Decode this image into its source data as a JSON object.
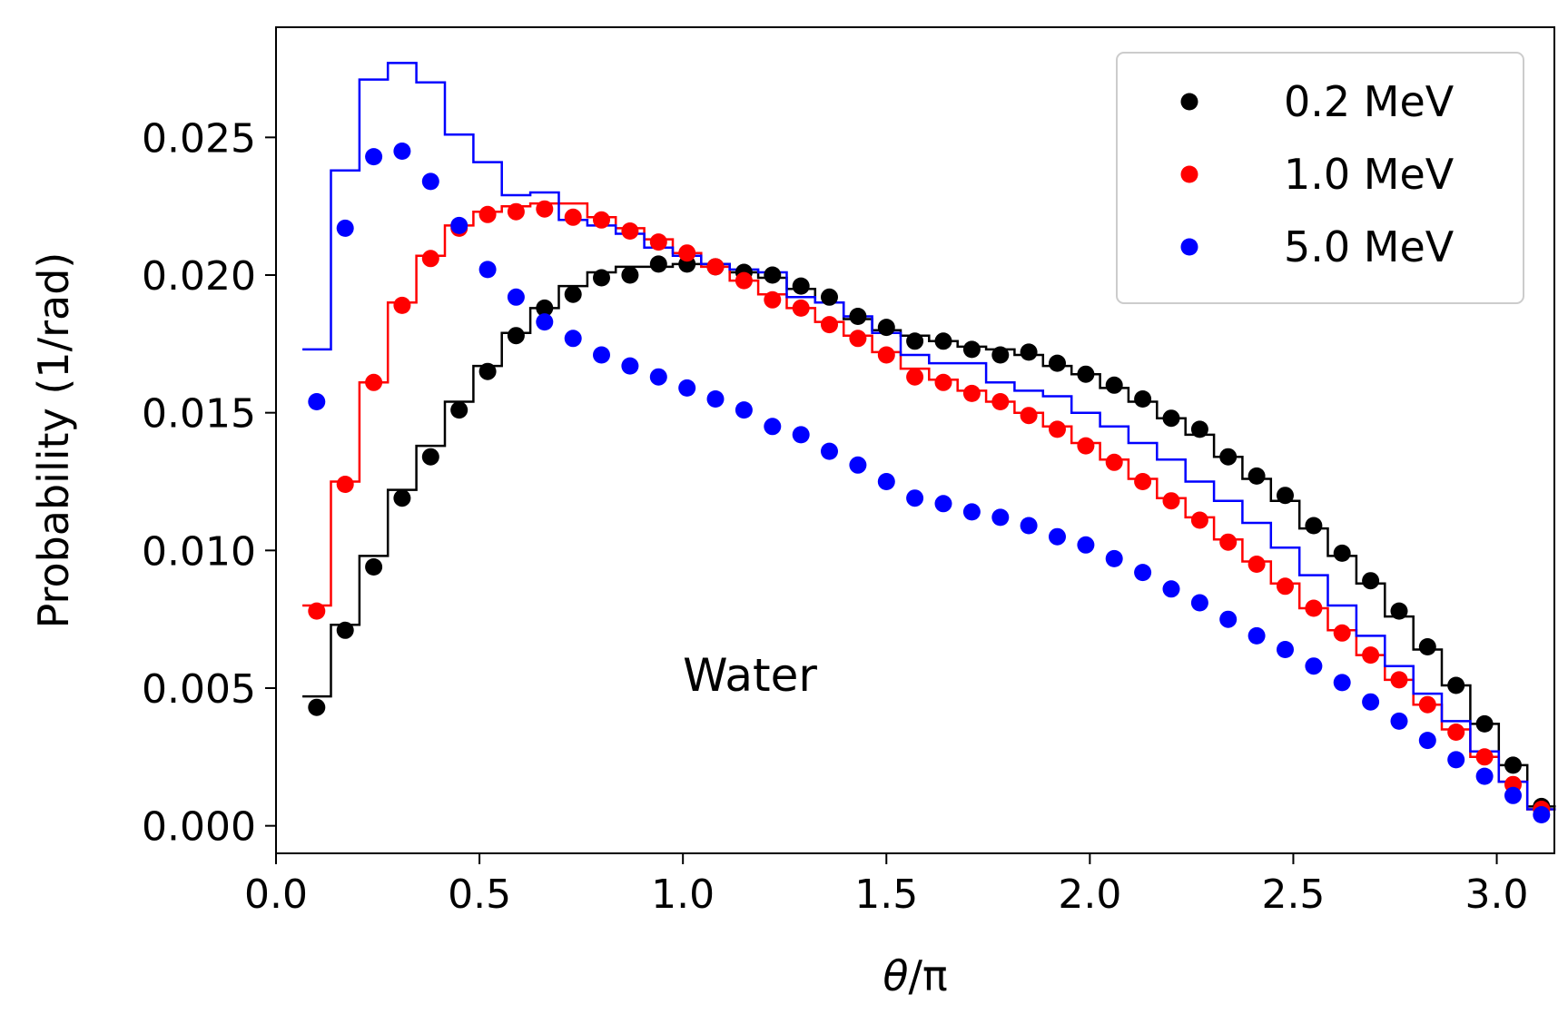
{
  "chart_data": {
    "type": "scatter",
    "xlabel_symbol": "θ",
    "xlabel_rest": "/π",
    "ylabel": "Probability (1/rad)",
    "xlim": [
      0.0,
      3.1416
    ],
    "ylim": [
      -0.001,
      0.029
    ],
    "xticks": [
      0.0,
      0.5,
      1.0,
      1.5,
      2.0,
      2.5,
      3.0
    ],
    "xtick_labels": [
      "0.0",
      "0.5",
      "1.0",
      "1.5",
      "2.0",
      "2.5",
      "3.0"
    ],
    "yticks": [
      0.0,
      0.005,
      0.01,
      0.015,
      0.02,
      0.025
    ],
    "ytick_labels": [
      "0.000",
      "0.005",
      "0.010",
      "0.015",
      "0.020",
      "0.025"
    ],
    "annotation": {
      "text": "Water",
      "x": 1.0,
      "y": 0.0055
    },
    "legend": {
      "position": "top-right"
    },
    "grid": false,
    "series": [
      {
        "name": "0.2 MeV",
        "color": "#000000",
        "points_x": [
          0.1,
          0.17,
          0.24,
          0.31,
          0.38,
          0.45,
          0.52,
          0.59,
          0.66,
          0.73,
          0.8,
          0.87,
          0.94,
          1.01,
          1.08,
          1.15,
          1.22,
          1.29,
          1.36,
          1.43,
          1.5,
          1.57,
          1.64,
          1.71,
          1.78,
          1.85,
          1.92,
          1.99,
          2.06,
          2.13,
          2.2,
          2.27,
          2.34,
          2.41,
          2.48,
          2.55,
          2.62,
          2.69,
          2.76,
          2.83,
          2.9,
          2.97,
          3.04,
          3.11
        ],
        "points_y": [
          0.0043,
          0.0071,
          0.0094,
          0.0119,
          0.0134,
          0.0151,
          0.0165,
          0.0178,
          0.0188,
          0.0193,
          0.0199,
          0.02,
          0.0204,
          0.0204,
          0.0203,
          0.0201,
          0.02,
          0.0196,
          0.0192,
          0.0185,
          0.0181,
          0.0176,
          0.0176,
          0.0173,
          0.0171,
          0.0172,
          0.0168,
          0.0164,
          0.016,
          0.0155,
          0.0148,
          0.0144,
          0.0134,
          0.0127,
          0.012,
          0.0109,
          0.0099,
          0.0089,
          0.0078,
          0.0065,
          0.0051,
          0.0037,
          0.0022,
          0.0007
        ],
        "hist_y": [
          0.0047,
          0.0073,
          0.0098,
          0.0122,
          0.0138,
          0.0154,
          0.0167,
          0.0179,
          0.0188,
          0.0196,
          0.0201,
          0.0203,
          0.0203,
          0.0204,
          0.0204,
          0.0201,
          0.0199,
          0.0195,
          0.019,
          0.0184,
          0.018,
          0.0178,
          0.0176,
          0.0174,
          0.0173,
          0.0171,
          0.0167,
          0.0164,
          0.0159,
          0.0154,
          0.0148,
          0.0142,
          0.0134,
          0.0126,
          0.0118,
          0.0108,
          0.0098,
          0.0088,
          0.0076,
          0.0064,
          0.0051,
          0.0037,
          0.0022,
          0.0007
        ]
      },
      {
        "name": "1.0 MeV",
        "color": "#ff0000",
        "points_x": [
          0.1,
          0.17,
          0.24,
          0.31,
          0.38,
          0.45,
          0.52,
          0.59,
          0.66,
          0.73,
          0.8,
          0.87,
          0.94,
          1.01,
          1.08,
          1.15,
          1.22,
          1.29,
          1.36,
          1.43,
          1.5,
          1.57,
          1.64,
          1.71,
          1.78,
          1.85,
          1.92,
          1.99,
          2.06,
          2.13,
          2.2,
          2.27,
          2.34,
          2.41,
          2.48,
          2.55,
          2.62,
          2.69,
          2.76,
          2.83,
          2.9,
          2.97,
          3.04,
          3.11
        ],
        "points_y": [
          0.0078,
          0.0124,
          0.0161,
          0.0189,
          0.0206,
          0.0217,
          0.0222,
          0.0223,
          0.0224,
          0.0221,
          0.022,
          0.0216,
          0.0212,
          0.0208,
          0.0203,
          0.0198,
          0.0191,
          0.0188,
          0.0182,
          0.0177,
          0.0171,
          0.0163,
          0.0161,
          0.0157,
          0.0154,
          0.0149,
          0.0144,
          0.0138,
          0.0132,
          0.0125,
          0.0118,
          0.0111,
          0.0103,
          0.0095,
          0.0087,
          0.0079,
          0.007,
          0.0062,
          0.0053,
          0.0044,
          0.0034,
          0.0025,
          0.0015,
          0.0006
        ],
        "hist_y": [
          0.008,
          0.0125,
          0.0161,
          0.019,
          0.0207,
          0.0218,
          0.0223,
          0.0225,
          0.0226,
          0.0226,
          0.0221,
          0.0217,
          0.0213,
          0.0208,
          0.0203,
          0.0198,
          0.0193,
          0.0188,
          0.0183,
          0.0178,
          0.0172,
          0.0166,
          0.0162,
          0.0158,
          0.0154,
          0.015,
          0.0145,
          0.0139,
          0.0133,
          0.0126,
          0.0119,
          0.0112,
          0.0104,
          0.0096,
          0.0088,
          0.0079,
          0.0071,
          0.0062,
          0.0053,
          0.0044,
          0.0035,
          0.0025,
          0.0016,
          0.0006
        ]
      },
      {
        "name": "5.0 MeV",
        "color": "#0000ff",
        "points_x": [
          0.1,
          0.17,
          0.24,
          0.31,
          0.38,
          0.45,
          0.52,
          0.59,
          0.66,
          0.73,
          0.8,
          0.87,
          0.94,
          1.01,
          1.08,
          1.15,
          1.22,
          1.29,
          1.36,
          1.43,
          1.5,
          1.57,
          1.64,
          1.71,
          1.78,
          1.85,
          1.92,
          1.99,
          2.06,
          2.13,
          2.2,
          2.27,
          2.34,
          2.41,
          2.48,
          2.55,
          2.62,
          2.69,
          2.76,
          2.83,
          2.9,
          2.97,
          3.04,
          3.11
        ],
        "points_y": [
          0.0154,
          0.0217,
          0.0243,
          0.0245,
          0.0234,
          0.0218,
          0.0202,
          0.0192,
          0.0183,
          0.0177,
          0.0171,
          0.0167,
          0.0163,
          0.0159,
          0.0155,
          0.0151,
          0.0145,
          0.0142,
          0.0136,
          0.0131,
          0.0125,
          0.0119,
          0.0117,
          0.0114,
          0.0112,
          0.0109,
          0.0105,
          0.0102,
          0.0097,
          0.0092,
          0.0086,
          0.0081,
          0.0075,
          0.0069,
          0.0064,
          0.0058,
          0.0052,
          0.0045,
          0.0038,
          0.0031,
          0.0024,
          0.0018,
          0.0011,
          0.0004
        ],
        "hist_y": [
          0.0173,
          0.0238,
          0.0271,
          0.0277,
          0.027,
          0.0251,
          0.0241,
          0.0229,
          0.023,
          0.022,
          0.0218,
          0.0215,
          0.021,
          0.0207,
          0.0204,
          0.0202,
          0.0201,
          0.0192,
          0.019,
          0.0185,
          0.0179,
          0.0171,
          0.0168,
          0.0168,
          0.0161,
          0.0158,
          0.0156,
          0.015,
          0.0145,
          0.0139,
          0.0133,
          0.0125,
          0.0118,
          0.011,
          0.0101,
          0.0091,
          0.008,
          0.0069,
          0.0058,
          0.0048,
          0.0038,
          0.0027,
          0.0016,
          0.0006
        ]
      }
    ]
  }
}
